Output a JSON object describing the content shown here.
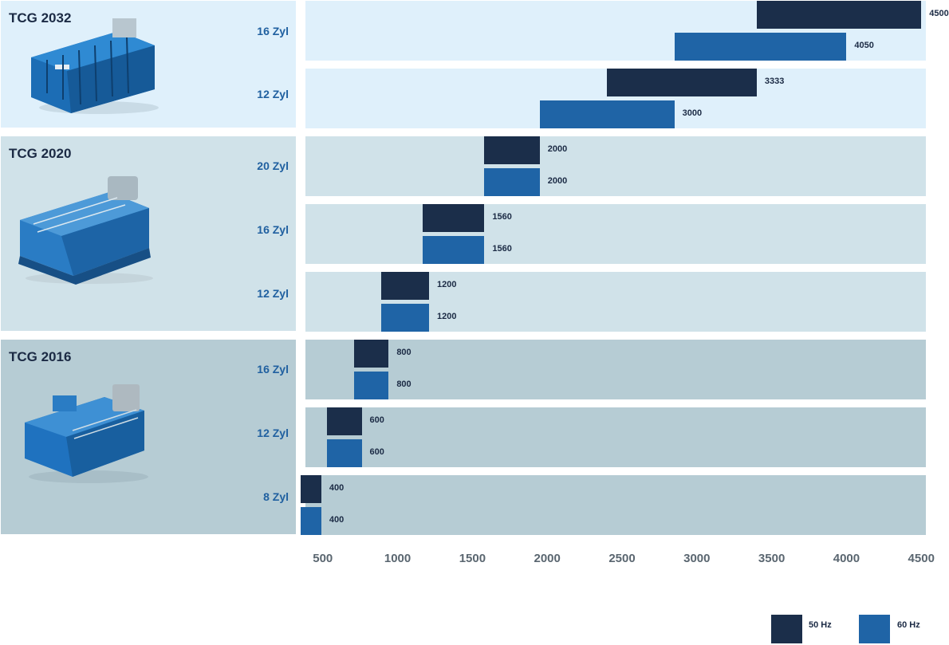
{
  "chart_data": {
    "type": "bar",
    "orientation": "horizontal",
    "title": "",
    "xlabel": "",
    "ylabel": "",
    "xlim": [
      400,
      4600
    ],
    "xticks": [
      "500",
      "1000",
      "1500",
      "2000",
      "2500",
      "3000",
      "3500",
      "4000",
      "4500"
    ],
    "legend": [
      {
        "name": "50 Hz",
        "color": "#1b2e4a"
      },
      {
        "name": "60 Hz",
        "color": "#1f64a6"
      }
    ],
    "groups": [
      {
        "series": "TCG 2032",
        "rows": [
          {
            "label": "16 Zyl",
            "range50": [
              3400,
              4500
            ],
            "range60": [
              2850,
              4000
            ],
            "v50": "4500",
            "v60": "4050"
          },
          {
            "label": "12 Zyl",
            "range50": [
              2400,
              3400
            ],
            "range60": [
              1950,
              2850
            ],
            "v50": "3333",
            "v60": "3000"
          }
        ]
      },
      {
        "series": "TCG 2020",
        "rows": [
          {
            "label": "20 Zyl",
            "range50": [
              1580,
              1950
            ],
            "range60": [
              1580,
              1950
            ],
            "v50": "2000",
            "v60": "2000"
          },
          {
            "label": "16 Zyl",
            "range50": [
              1170,
              1580
            ],
            "range60": [
              1170,
              1580
            ],
            "v50": "1560",
            "v60": "1560"
          },
          {
            "label": "12 Zyl",
            "range50": [
              890,
              1210
            ],
            "range60": [
              890,
              1210
            ],
            "v50": "1200",
            "v60": "1200"
          }
        ]
      },
      {
        "series": "TCG 2016",
        "rows": [
          {
            "label": "16 Zyl",
            "range50": [
              710,
              940
            ],
            "range60": [
              710,
              940
            ],
            "v50": "800",
            "v60": "800"
          },
          {
            "label": "12 Zyl",
            "range50": [
              530,
              760
            ],
            "range60": [
              530,
              760
            ],
            "v50": "600",
            "v60": "600"
          },
          {
            "label": "8 Zyl",
            "range50": [
              350,
              490
            ],
            "range60": [
              350,
              490
            ],
            "v50": "400",
            "v60": "400"
          }
        ]
      }
    ]
  }
}
